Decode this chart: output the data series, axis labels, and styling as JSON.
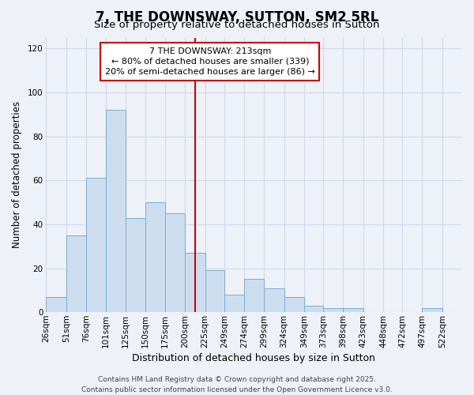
{
  "title": "7, THE DOWNSWAY, SUTTON, SM2 5RL",
  "subtitle": "Size of property relative to detached houses in Sutton",
  "xlabel": "Distribution of detached houses by size in Sutton",
  "ylabel": "Number of detached properties",
  "bin_edges": [
    26,
    51,
    76,
    101,
    125,
    150,
    175,
    200,
    225,
    249,
    274,
    299,
    324,
    349,
    373,
    398,
    423,
    448,
    472,
    497,
    522
  ],
  "bar_heights": [
    7,
    35,
    61,
    92,
    43,
    50,
    45,
    27,
    19,
    8,
    15,
    11,
    7,
    3,
    2,
    2,
    0,
    0,
    0,
    2
  ],
  "bar_color": "#ccddf0",
  "bar_edgecolor": "#7aadcf",
  "vline_x": 213,
  "vline_color": "#cc0000",
  "ylim": [
    0,
    125
  ],
  "yticks": [
    0,
    20,
    40,
    60,
    80,
    100,
    120
  ],
  "annotation_title": "7 THE DOWNSWAY: 213sqm",
  "annotation_line1": "← 80% of detached houses are smaller (339)",
  "annotation_line2": "20% of semi-detached houses are larger (86) →",
  "footer_line1": "Contains HM Land Registry data © Crown copyright and database right 2025.",
  "footer_line2": "Contains public sector information licensed under the Open Government Licence v3.0.",
  "background_color": "#eef1f8",
  "plot_bg_color": "#eef1f8",
  "grid_color": "#d0d8e8",
  "title_fontsize": 12,
  "subtitle_fontsize": 9.5,
  "xlabel_fontsize": 9,
  "ylabel_fontsize": 8.5,
  "tick_fontsize": 7.5,
  "footer_fontsize": 6.5,
  "ann_fontsize": 8
}
